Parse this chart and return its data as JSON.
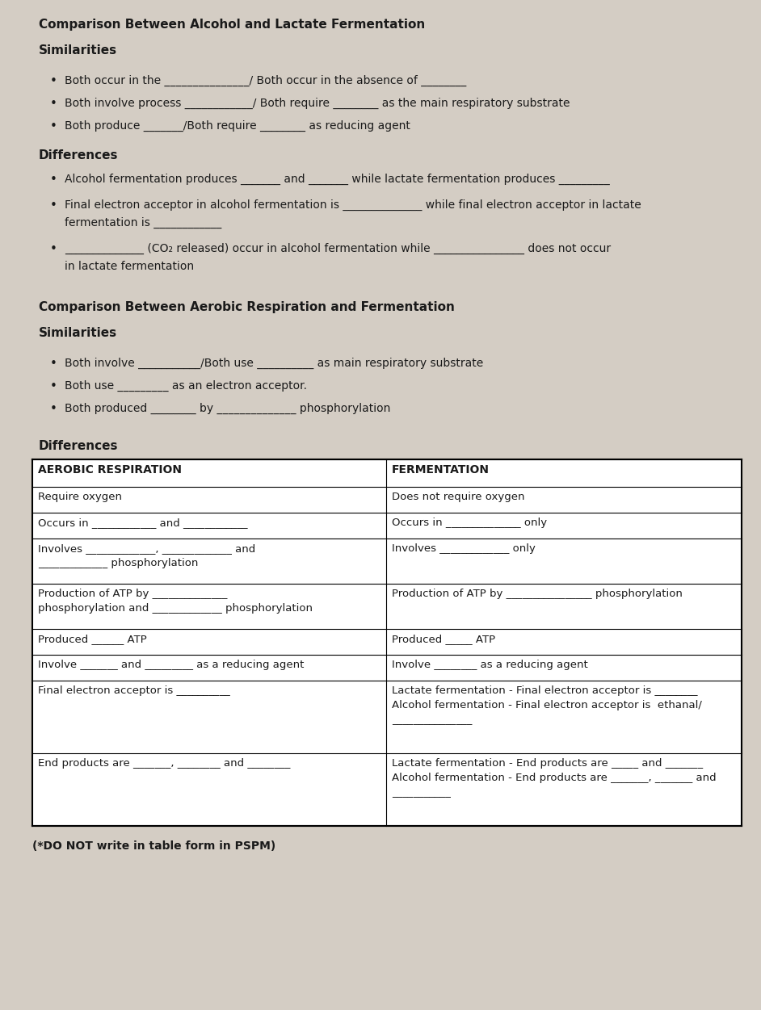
{
  "bg_color": "#d4cdc4",
  "text_color": "#1a1a1a",
  "title1": "Comparison Between Alcohol and Lactate Fermentation",
  "section1_header": "Similarities",
  "section1_bullets": [
    "Both occur in the _______________/ Both occur in the absence of ________",
    "Both involve process ____________/ Both require ________ as the main respiratory substrate",
    "Both produce _______/Both require ________ as reducing agent"
  ],
  "section1_diff_header": "Differences",
  "section1_diff_bullets": [
    [
      "Alcohol fermentation produces _______ and _______ while lactate fermentation produces _________"
    ],
    [
      "Final electron acceptor in alcohol fermentation is ______________ while final electron acceptor in lactate",
      "fermentation is ____________"
    ],
    [
      "______________ (CO₂ released) occur in alcohol fermentation while ________________ does not occur",
      "in lactate fermentation"
    ]
  ],
  "title2": "Comparison Between Aerobic Respiration and Fermentation",
  "section2_header": "Similarities",
  "section2_bullets": [
    "Both involve ___________/Both use __________ as main respiratory substrate",
    "Both use _________ as an electron acceptor.",
    "Both produced ________ by ______________ phosphorylation"
  ],
  "section2_diff_header": "Differences",
  "table_headers": [
    "AEROBIC RESPIRATION",
    "FERMENTATION"
  ],
  "table_rows": [
    [
      [
        "Require oxygen"
      ],
      [
        "Does not require oxygen"
      ]
    ],
    [
      [
        "Occurs in ____________ and ____________"
      ],
      [
        "Occurs in ______________ only"
      ]
    ],
    [
      [
        "Involves _____________, _____________ and",
        "_____________ phosphorylation"
      ],
      [
        "Involves _____________ only"
      ]
    ],
    [
      [
        "Production of ATP by ______________",
        "phosphorylation and _____________ phosphorylation"
      ],
      [
        "Production of ATP by ________________ phosphorylation"
      ]
    ],
    [
      [
        "Produced ______ ATP"
      ],
      [
        "Produced _____ ATP"
      ]
    ],
    [
      [
        "Involve _______ and _________ as a reducing agent"
      ],
      [
        "Involve ________ as a reducing agent"
      ]
    ],
    [
      [
        "Final electron acceptor is __________"
      ],
      [
        "Lactate fermentation - Final electron acceptor is ________",
        "Alcohol fermentation - Final electron acceptor is  ethanal/",
        "_______________"
      ]
    ],
    [
      [
        "End products are _______, ________ and ________"
      ],
      [
        "Lactate fermentation - End products are _____ and _______",
        "Alcohol fermentation - End products are _______, _______ and",
        "___________"
      ]
    ]
  ],
  "table_row_heights": [
    34,
    32,
    32,
    56,
    56,
    32,
    32,
    90,
    90
  ],
  "footnote": "(*DO NOT write in table form in PSPM)"
}
